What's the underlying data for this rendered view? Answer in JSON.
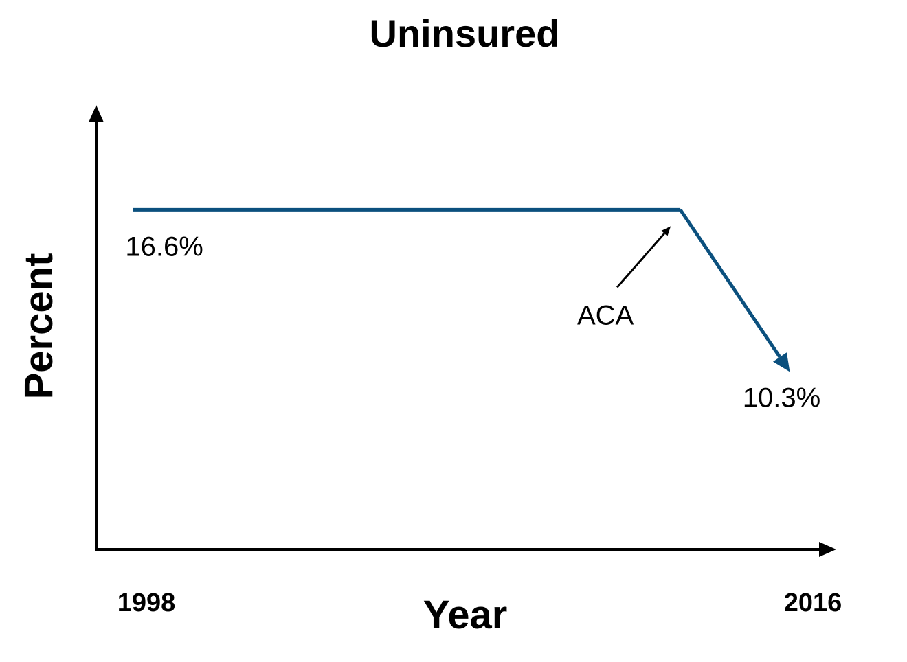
{
  "chart_data": {
    "type": "line",
    "title": "Uninsured",
    "xlabel": "Year",
    "ylabel": "Percent",
    "x_ticks": [
      "1998",
      "2016"
    ],
    "points": [
      {
        "x": 1998,
        "y": 16.6,
        "label": "16.6%"
      },
      {
        "x": 2013,
        "y": 16.6,
        "label": ""
      },
      {
        "x": 2016,
        "y": 10.3,
        "label": "10.3%"
      }
    ],
    "annotations": [
      {
        "text": "ACA",
        "x": 2013,
        "y": 16.6
      }
    ],
    "xlim": [
      1997,
      2016.8
    ],
    "ylim": [
      3.4,
      20
    ],
    "grid": false,
    "legend": "none",
    "colors": {
      "line": "#0b507e",
      "axis": "#000000",
      "annotation": "#000000"
    }
  }
}
